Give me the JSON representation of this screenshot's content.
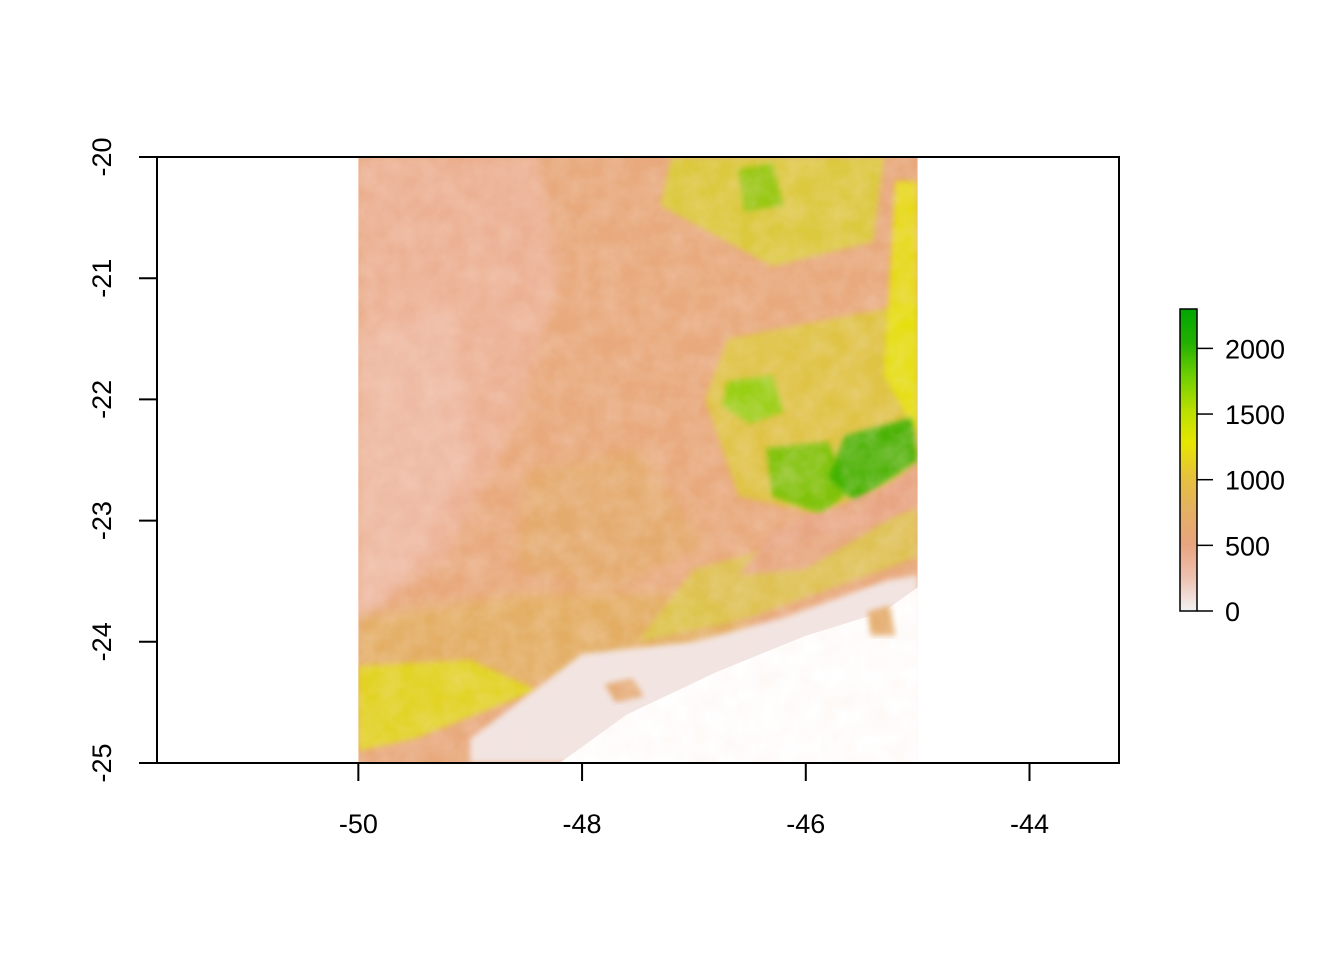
{
  "chart_data": {
    "type": "heatmap",
    "title": "",
    "xlabel": "",
    "ylabel": "",
    "xlim": [
      -51.8,
      -43.2
    ],
    "ylim": [
      -25,
      -20
    ],
    "raster_extent": {
      "xmin": -50,
      "xmax": -45,
      "ymin": -25,
      "ymax": -20
    },
    "x_ticks": [
      {
        "value": -50,
        "label": "-50"
      },
      {
        "value": -48,
        "label": "-48"
      },
      {
        "value": -46,
        "label": "-46"
      },
      {
        "value": -44,
        "label": "-44"
      }
    ],
    "y_ticks": [
      {
        "value": -20,
        "label": "-20"
      },
      {
        "value": -21,
        "label": "-21"
      },
      {
        "value": -22,
        "label": "-22"
      },
      {
        "value": -23,
        "label": "-23"
      },
      {
        "value": -24,
        "label": "-24"
      },
      {
        "value": -25,
        "label": "-25"
      }
    ],
    "legend": {
      "placement": "right",
      "range": [
        0,
        2300
      ],
      "ticks": [
        {
          "value": 0,
          "label": "0"
        },
        {
          "value": 500,
          "label": "500"
        },
        {
          "value": 1000,
          "label": "1000"
        },
        {
          "value": 1500,
          "label": "1500"
        },
        {
          "value": 2000,
          "label": "2000"
        }
      ],
      "palette": [
        "#f2f2f2",
        "#efc1b0",
        "#e8a47e",
        "#e4b062",
        "#e6c13d",
        "#e6e600",
        "#b8df00",
        "#6fcf00",
        "#23b000",
        "#00a600"
      ]
    }
  }
}
